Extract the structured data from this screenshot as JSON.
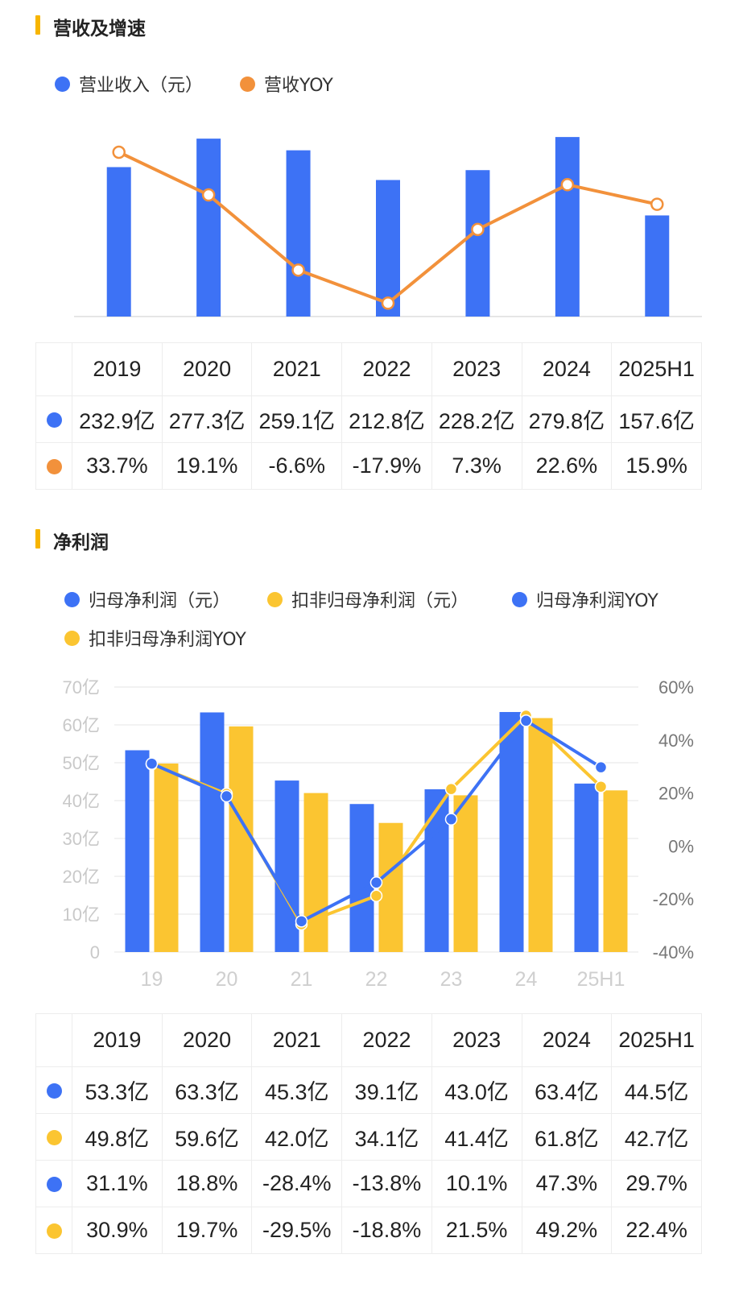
{
  "section1": {
    "title": "营收及增速",
    "legend": [
      {
        "label": "营业收入（元）",
        "color": "#3d72f5"
      },
      {
        "label": "营收YOY",
        "color": "#f2913b"
      }
    ],
    "table": {
      "years": [
        "2019",
        "2020",
        "2021",
        "2022",
        "2023",
        "2024",
        "2025H1"
      ],
      "rows": [
        {
          "marker_color": "#3d72f5",
          "values": [
            "232.9亿",
            "277.3亿",
            "259.1亿",
            "212.8亿",
            "228.2亿",
            "279.8亿",
            "157.6亿"
          ]
        },
        {
          "marker_color": "#f2913b",
          "values": [
            "33.7%",
            "19.1%",
            "-6.6%",
            "-17.9%",
            "7.3%",
            "22.6%",
            "15.9%"
          ]
        }
      ]
    }
  },
  "section2": {
    "title": "净利润",
    "legend": [
      {
        "label": "归母净利润（元）",
        "color": "#3d72f5"
      },
      {
        "label": "扣非归母净利润（元）",
        "color": "#fbc531"
      },
      {
        "label": "归母净利润YOY",
        "color": "#3d72f5"
      },
      {
        "label": "扣非归母净利润YOY",
        "color": "#fbc531"
      }
    ],
    "table": {
      "years": [
        "2019",
        "2020",
        "2021",
        "2022",
        "2023",
        "2024",
        "2025H1"
      ],
      "rows": [
        {
          "marker_color": "#3d72f5",
          "values": [
            "53.3亿",
            "63.3亿",
            "45.3亿",
            "39.1亿",
            "43.0亿",
            "63.4亿",
            "44.5亿"
          ]
        },
        {
          "marker_color": "#fbc531",
          "values": [
            "49.8亿",
            "59.6亿",
            "42.0亿",
            "34.1亿",
            "41.4亿",
            "61.8亿",
            "42.7亿"
          ]
        },
        {
          "marker_color": "#3d72f5",
          "values": [
            "31.1%",
            "18.8%",
            "-28.4%",
            "-13.8%",
            "10.1%",
            "47.3%",
            "29.7%"
          ]
        },
        {
          "marker_color": "#fbc531",
          "values": [
            "30.9%",
            "19.7%",
            "-29.5%",
            "-18.8%",
            "21.5%",
            "49.2%",
            "22.4%"
          ]
        }
      ]
    }
  },
  "chart_data": [
    {
      "type": "bar",
      "categories": [
        "2019",
        "2020",
        "2021",
        "2022",
        "2023",
        "2024",
        "2025H1"
      ],
      "series": [
        {
          "name": "营业收入（元）",
          "type": "bar",
          "axis": "left",
          "color": "#3d72f5",
          "values": [
            232.9,
            277.3,
            259.1,
            212.8,
            228.2,
            279.8,
            157.6
          ]
        },
        {
          "name": "营收YOY",
          "type": "line",
          "axis": "right",
          "color": "#f2913b",
          "values": [
            33.7,
            19.1,
            -6.6,
            -17.9,
            7.3,
            22.6,
            15.9
          ]
        }
      ],
      "ylim": [
        0,
        290
      ],
      "y2lim": [
        -20,
        37
      ],
      "grid": false,
      "legend": "top-left"
    },
    {
      "type": "bar",
      "categories": [
        "19",
        "20",
        "21",
        "22",
        "23",
        "24",
        "25H1"
      ],
      "series": [
        {
          "name": "归母净利润（元）",
          "type": "bar",
          "axis": "left",
          "color": "#3d72f5",
          "values": [
            53.3,
            63.3,
            45.3,
            39.1,
            43.0,
            63.4,
            44.5
          ]
        },
        {
          "name": "扣非归母净利润（元）",
          "type": "bar",
          "axis": "left",
          "color": "#fbc531",
          "values": [
            49.8,
            59.6,
            42.0,
            34.1,
            41.4,
            61.8,
            42.7
          ]
        },
        {
          "name": "归母净利润YOY",
          "type": "line",
          "axis": "right",
          "color": "#3d72f5",
          "values": [
            31.1,
            18.8,
            -28.4,
            -13.8,
            10.1,
            47.3,
            29.7
          ]
        },
        {
          "name": "扣非归母净利润YOY",
          "type": "line",
          "axis": "right",
          "color": "#fbc531",
          "values": [
            30.9,
            19.7,
            -29.5,
            -18.8,
            21.5,
            49.2,
            22.4
          ]
        }
      ],
      "yticks": [
        "0",
        "10亿",
        "20亿",
        "30亿",
        "40亿",
        "50亿",
        "60亿",
        "70亿"
      ],
      "y2ticks": [
        "-40%",
        "-20%",
        "0%",
        "20%",
        "40%",
        "60%"
      ],
      "ylim": [
        0,
        70
      ],
      "y2lim": [
        -40,
        60
      ],
      "grid": true,
      "legend": "top-left"
    }
  ]
}
